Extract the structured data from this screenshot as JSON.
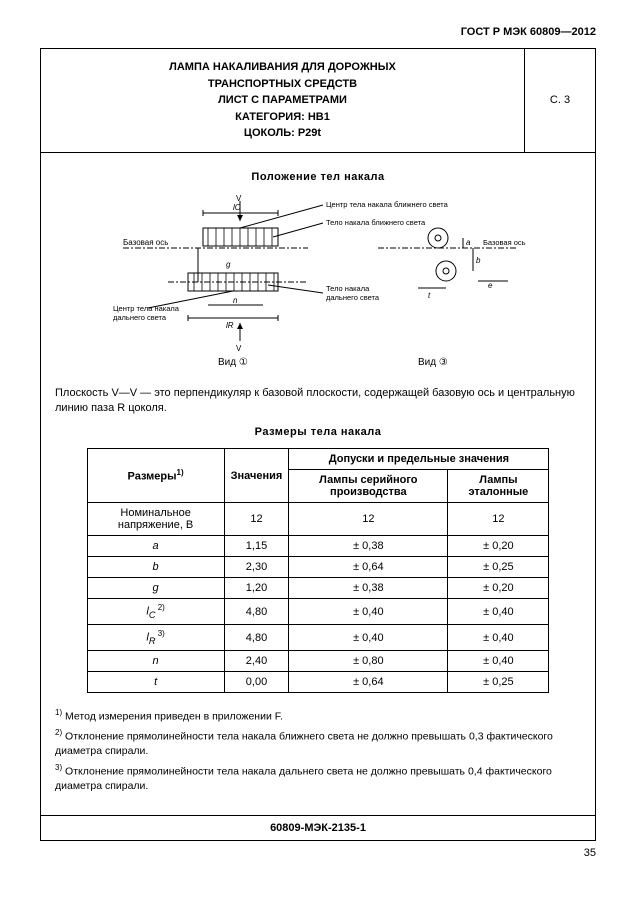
{
  "doc_header": "ГОСТ Р МЭК 60809—2012",
  "title": {
    "line1": "ЛАМПА НАКАЛИВАНИЯ ДЛЯ ДОРОЖНЫХ",
    "line2": "ТРАНСПОРТНЫХ СРЕДСТВ",
    "line3": "ЛИСТ С ПАРАМЕТРАМИ",
    "line4": "КАТЕГОРИЯ: HB1",
    "line5": "ЦОКОЛЬ: P29t",
    "page_mark": "С. 3"
  },
  "section1_title": "Положение  тел  накала",
  "diagram": {
    "labels": {
      "base_axis": "Базовая ось",
      "center_near": "Центр тела накала ближнего света",
      "body_near": "Тело накала ближнего света",
      "base_axis_right": "Базовая ось",
      "center_far": "Центр тела накала дальнего света",
      "body_far": "Тело накала дальнего света",
      "view1": "Вид ①",
      "view3": "Вид ③",
      "V": "V",
      "lc": "lC",
      "ln": "lR",
      "g": "g",
      "n": "n",
      "a": "a",
      "b": "b",
      "t": "t",
      "e": "e"
    },
    "colors": {
      "stroke": "#000000",
      "hatch": "#000000",
      "bg": "#ffffff"
    }
  },
  "note_text": "Плоскость V—V — это перпендикуляр к базовой плоскости, содержащей базовую ось и центральную линию паза R цоколя.",
  "section2_title": "Размеры тела накала",
  "table": {
    "head_c1": "Размеры",
    "head_c1_sup": "1)",
    "head_c2": "Значения",
    "head_c3": "Допуски и предельные значения",
    "head_c3a": "Лампы серийного производства",
    "head_c3b": "Лампы эталонные",
    "rows": [
      {
        "label": "Номинальное напряжение, В",
        "val": "12",
        "ser": "12",
        "ref": "12",
        "ital": false
      },
      {
        "label": "a",
        "val": "1,15",
        "ser": "± 0,38",
        "ref": "± 0,20",
        "ital": true
      },
      {
        "label": "b",
        "val": "2,30",
        "ser": "± 0,64",
        "ref": "± 0,25",
        "ital": true
      },
      {
        "label": "g",
        "val": "1,20",
        "ser": "± 0,38",
        "ref": "± 0,20",
        "ital": true
      },
      {
        "label": "l",
        "sub": "C",
        "sup": "2)",
        "val": "4,80",
        "ser": "± 0,40",
        "ref": "± 0,40",
        "ital": true
      },
      {
        "label": "l",
        "sub": "R",
        "sup": "3)",
        "val": "4,80",
        "ser": "± 0,40",
        "ref": "± 0,40",
        "ital": true
      },
      {
        "label": "n",
        "val": "2,40",
        "ser": "± 0,80",
        "ref": "± 0,40",
        "ital": true
      },
      {
        "label": "t",
        "val": "0,00",
        "ser": "± 0,64",
        "ref": "± 0,25",
        "ital": true
      }
    ]
  },
  "footnotes": {
    "f1_sup": "1)",
    "f1": "Метод измерения приведен в приложении F.",
    "f2_sup": "2)",
    "f2": "Отклонение прямолинейности тела накала ближнего света не должно превышать 0,3 фактического диаметра спирали.",
    "f3_sup": "3)",
    "f3": "Отклонение прямолинейности тела накала дальнего света не должно превышать 0,4 фактического диаметра спирали."
  },
  "bottom_id": "60809-МЭК-2135-1",
  "page_number": "35"
}
